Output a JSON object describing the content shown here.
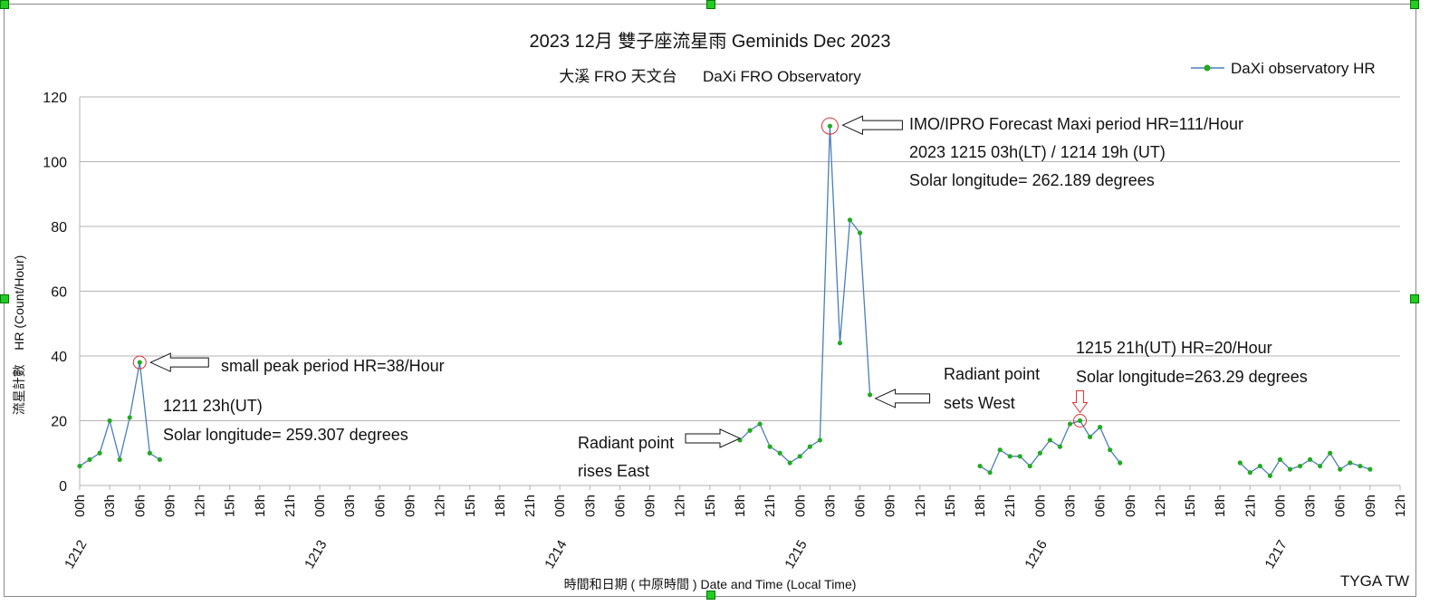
{
  "chart_data": {
    "type": "line",
    "title": "2023 12月 雙子座流星雨   Geminids Dec 2023",
    "subtitle": "大溪 FRO 天文台      DaXi FRO Observatory",
    "xlabel": "時間和日期 ( 中原時間 ) Date and Time (Local Time)",
    "ylabel": "流星計數    HR (Count/Hour)",
    "ylim": [
      0,
      120
    ],
    "yticks": [
      0,
      20,
      40,
      60,
      80,
      100,
      120
    ],
    "grid": "horizontal",
    "legend": {
      "placement": "top-right",
      "entries": [
        "DaXi observatory HR"
      ]
    },
    "x_unit": "hours since 1212 00h (local)",
    "xlim": [
      0,
      132
    ],
    "hour_tick_labels": [
      "00h",
      "03h",
      "06h",
      "09h",
      "12h",
      "15h",
      "18h",
      "21h"
    ],
    "date_labels": [
      "1212",
      "1213",
      "1214",
      "1215",
      "1216",
      "1217"
    ],
    "series": [
      {
        "name": "DaXi observatory HR",
        "color": "#4a7ebb",
        "marker_color": "#22aa22",
        "segments": [
          {
            "start_hour": 0,
            "values": [
              6,
              8,
              10,
              20,
              8,
              21,
              38,
              10,
              8
            ]
          },
          {
            "start_hour": 66,
            "values": [
              14,
              17,
              19,
              12,
              10,
              7,
              9,
              12,
              14,
              111,
              44,
              82,
              78,
              28
            ]
          },
          {
            "start_hour": 90,
            "values": [
              6,
              4,
              11,
              9,
              9,
              6,
              10,
              14,
              12,
              19,
              20,
              15,
              18,
              11,
              7
            ]
          },
          {
            "start_hour": 116,
            "values": [
              7,
              4,
              6,
              3,
              8,
              5,
              6,
              8,
              6,
              10,
              5,
              7,
              6,
              5
            ]
          }
        ]
      }
    ],
    "annotations": [
      {
        "hour": 6,
        "value": 38,
        "lines": [
          "small peak period   HR=38/Hour"
        ],
        "sub": [
          "1211  23h(UT)",
          "Solar longitude= 259.307 degrees"
        ]
      },
      {
        "hour": 75,
        "value": 111,
        "lines": [
          "IMO/IPRO Forecast Maxi period  HR=111/Hour",
          "2023 1215 03h(LT) / 1214 19h (UT)",
          "Solar longitude= 262.189 degrees"
        ]
      },
      {
        "hour": 66,
        "value": 14,
        "lines": [
          "Radiant point",
          "rises East"
        ]
      },
      {
        "hour": 79,
        "value": 28,
        "lines": [
          "Radiant point",
          "sets West"
        ]
      },
      {
        "hour": 100,
        "value": 20,
        "lines": [
          "1215 21h(UT)  HR=20/Hour",
          "Solar longitude=263.29 degrees"
        ]
      }
    ],
    "credit": "TYGA TW"
  }
}
